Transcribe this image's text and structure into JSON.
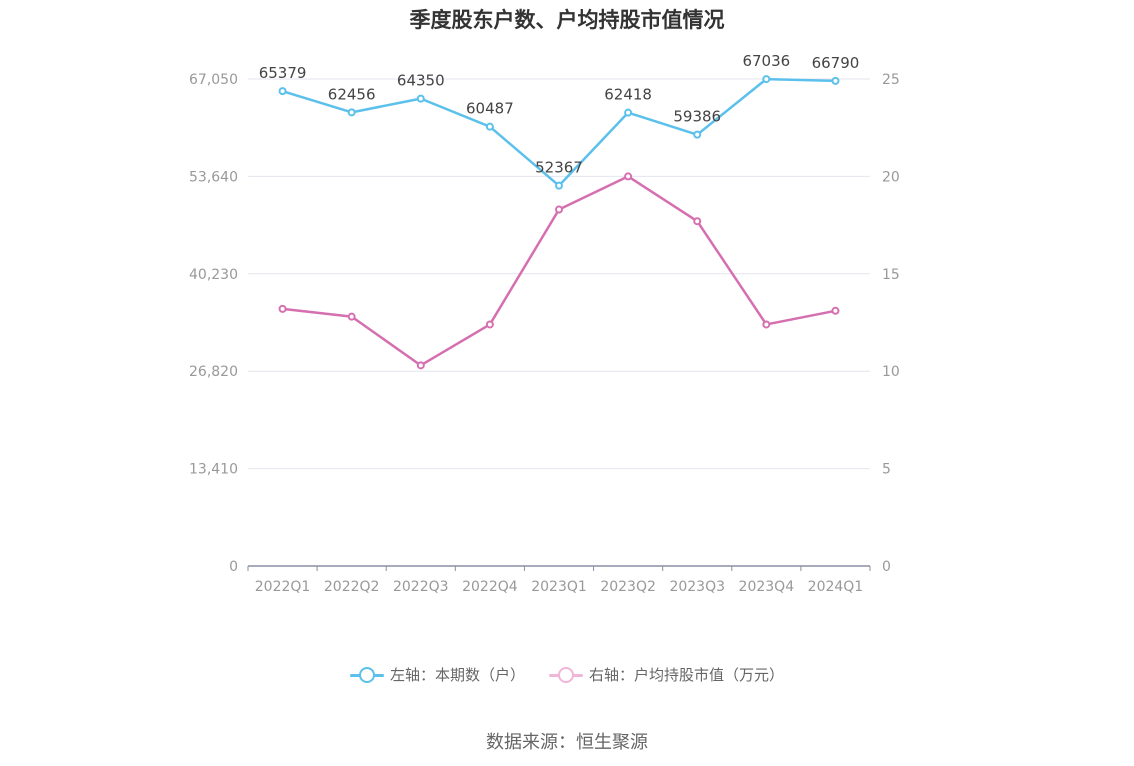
{
  "chart_data": {
    "type": "line",
    "title": "季度股东户数、户均持股市值情况",
    "categories": [
      "2022Q1",
      "2022Q2",
      "2022Q3",
      "2022Q4",
      "2023Q1",
      "2023Q2",
      "2023Q3",
      "2023Q4",
      "2024Q1"
    ],
    "y_left_ticks": [
      "0",
      "13,410",
      "26,820",
      "40,230",
      "53,640",
      "67,050"
    ],
    "y_left_range": [
      0,
      67050
    ],
    "y_right_ticks": [
      "0",
      "5",
      "10",
      "15",
      "20",
      "25"
    ],
    "y_right_range": [
      0,
      25
    ],
    "grid": true,
    "legend_position": "bottom",
    "series": [
      {
        "name": "左轴：本期数（户）",
        "axis": "left",
        "color": "#5bc0eb",
        "values": [
          65379,
          62456,
          64350,
          60487,
          52367,
          62418,
          59386,
          67036,
          66790
        ],
        "labels": [
          "65379",
          "62456",
          "64350",
          "60487",
          "52367",
          "62418",
          "59386",
          "67036",
          "66790"
        ]
      },
      {
        "name": "右轴：户均持股市值（万元）",
        "axis": "right",
        "color": "#d56fb0",
        "values": [
          13.2,
          12.8,
          10.3,
          12.4,
          18.3,
          20.0,
          17.7,
          12.4,
          13.1
        ]
      }
    ]
  },
  "legend": {
    "left_label": "左轴：本期数（户）",
    "right_label": "右轴：户均持股市值（万元）"
  },
  "source": "数据来源：恒生聚源"
}
